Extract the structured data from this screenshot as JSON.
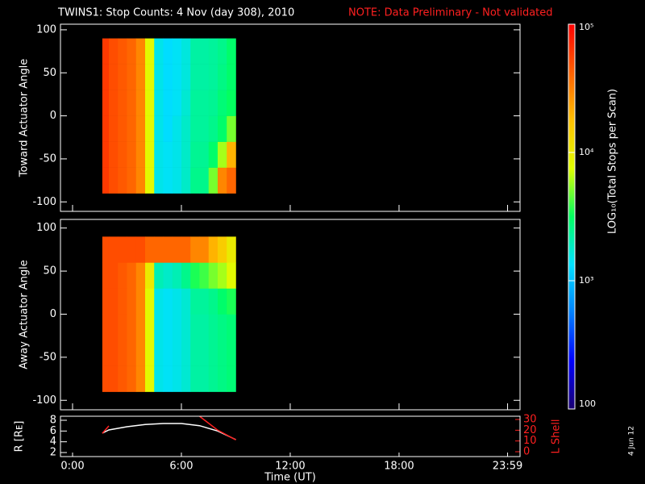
{
  "header": {
    "title": "TWINS1: Stop Counts:  4 Nov (day 308), 2010",
    "note": "NOTE: Data Preliminary - Not validated",
    "date": "4 Jun 12"
  },
  "colorbar": {
    "label": "LOG₁₀(Total Stops per Scan)",
    "zlim": [
      100,
      100000
    ],
    "log": true,
    "zticks": [
      {
        "value": 100000,
        "label": "10⁵"
      },
      {
        "value": 10000,
        "label": "10⁴"
      },
      {
        "value": 1000,
        "label": "10³"
      },
      100
    ],
    "colormap": [
      "#1a0070",
      "#0000ff",
      "#0080ff",
      "#00e0ff",
      "#00ff60",
      "#e0ff00",
      "#ffc000",
      "#ff6000",
      "#ff0000"
    ]
  },
  "chart_data": [
    {
      "type": "heatmap",
      "y_label": "Toward Actuator Angle",
      "ylim": [
        -111,
        106.5
      ],
      "yticks": [
        -100,
        -50,
        0,
        50,
        100
      ],
      "x_bins": [
        1.64,
        2,
        2.5,
        3,
        3.5,
        4,
        4.5,
        5,
        5.5,
        6,
        6.5,
        7,
        7.5,
        8,
        8.5,
        9
      ],
      "y_bins": [
        -90,
        -60,
        -30,
        0,
        30,
        60,
        90
      ],
      "z": [
        [
          60000,
          50000,
          45000,
          40000,
          30000,
          8000,
          1500,
          1400,
          1500,
          1800,
          2500,
          2500,
          5000,
          30000,
          40000
        ],
        [
          60000,
          50000,
          45000,
          40000,
          30000,
          8000,
          1500,
          1400,
          1500,
          1800,
          2400,
          2400,
          3000,
          6000,
          20000
        ],
        [
          60000,
          50000,
          45000,
          40000,
          30000,
          8000,
          1500,
          1300,
          1500,
          1800,
          2300,
          2300,
          2500,
          3000,
          5000
        ],
        [
          60000,
          50000,
          45000,
          40000,
          30000,
          8000,
          1500,
          1300,
          1400,
          1700,
          2300,
          2300,
          2400,
          2800,
          3200
        ],
        [
          60000,
          50000,
          45000,
          40000,
          30000,
          8000,
          1500,
          1300,
          1400,
          1600,
          2200,
          2200,
          2300,
          2600,
          3000
        ],
        [
          60000,
          50000,
          45000,
          40000,
          30000,
          8000,
          1500,
          1300,
          1400,
          1600,
          2200,
          2200,
          2300,
          2500,
          3000
        ]
      ]
    },
    {
      "type": "heatmap",
      "y_label": "Away Actuator Angle",
      "ylim": [
        -111,
        110
      ],
      "yticks": [
        -100,
        -50,
        0,
        50,
        100
      ],
      "x_bins": [
        1.64,
        2,
        2.5,
        3,
        3.5,
        4,
        4.5,
        5,
        5.5,
        6,
        6.5,
        7,
        7.5,
        8,
        8.5,
        9
      ],
      "y_bins": [
        -90,
        -60,
        -30,
        0,
        30,
        60,
        90
      ],
      "z": [
        [
          50000,
          50000,
          45000,
          40000,
          30000,
          8000,
          1500,
          1400,
          1500,
          1700,
          2200,
          2200,
          2400,
          2600,
          2800
        ],
        [
          50000,
          50000,
          45000,
          40000,
          30000,
          8000,
          1500,
          1400,
          1500,
          1700,
          2200,
          2200,
          2400,
          2600,
          2800
        ],
        [
          50000,
          50000,
          45000,
          40000,
          30000,
          8000,
          1500,
          1400,
          1500,
          1700,
          2200,
          2200,
          2400,
          2600,
          2800
        ],
        [
          50000,
          50000,
          45000,
          40000,
          30000,
          8000,
          1500,
          1400,
          1500,
          1700,
          2300,
          2300,
          2500,
          3000,
          3500
        ],
        [
          50000,
          50000,
          45000,
          40000,
          30000,
          10000,
          2000,
          1800,
          2000,
          2500,
          3500,
          4000,
          5000,
          6000,
          8000
        ],
        [
          50000,
          50000,
          50000,
          50000,
          50000,
          40000,
          40000,
          40000,
          40000,
          40000,
          30000,
          30000,
          20000,
          15000,
          10000
        ]
      ]
    },
    {
      "type": "line",
      "y_label": "R [Rᴇ]",
      "y2_label": "L Shell",
      "x_label": "Time (UT)",
      "xlim": [
        -0.667,
        24.67
      ],
      "xticks": [
        {
          "value": 0,
          "label": "0:00"
        },
        {
          "value": 6,
          "label": "6:00"
        },
        {
          "value": 12,
          "label": "12:00"
        },
        {
          "value": 18,
          "label": "18:00"
        },
        {
          "value": 23.983,
          "label": "23:59"
        }
      ],
      "ylim": [
        1.25,
        8.75
      ],
      "yticks": [
        2,
        4,
        6,
        8
      ],
      "y2lim": [
        -4.5,
        33
      ],
      "y2ticks": [
        0,
        10,
        20,
        30
      ],
      "x": [
        1.64,
        2,
        3,
        4,
        5,
        6,
        7,
        8,
        9
      ],
      "series": [
        {
          "name": "R",
          "color": "#ffffff",
          "values": [
            5.6,
            6.2,
            6.8,
            7.2,
            7.4,
            7.4,
            7.0,
            6.0,
            4.4
          ]
        },
        {
          "name": "L Shell",
          "color": "#ff2020",
          "axis": "y2",
          "values": [
            17,
            24,
            null,
            null,
            null,
            null,
            33,
            20,
            11
          ]
        }
      ]
    }
  ]
}
